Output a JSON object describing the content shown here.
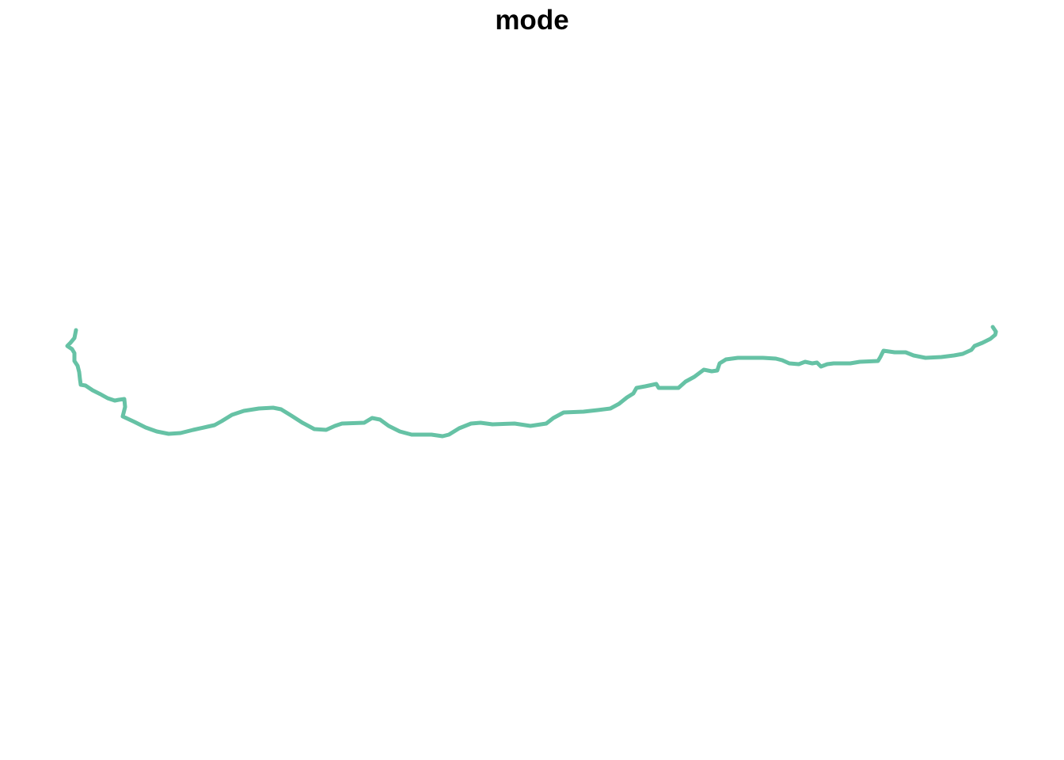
{
  "map": {
    "title": "mode",
    "route_color": "#66c2a5",
    "background_color": "#ffffff"
  }
}
